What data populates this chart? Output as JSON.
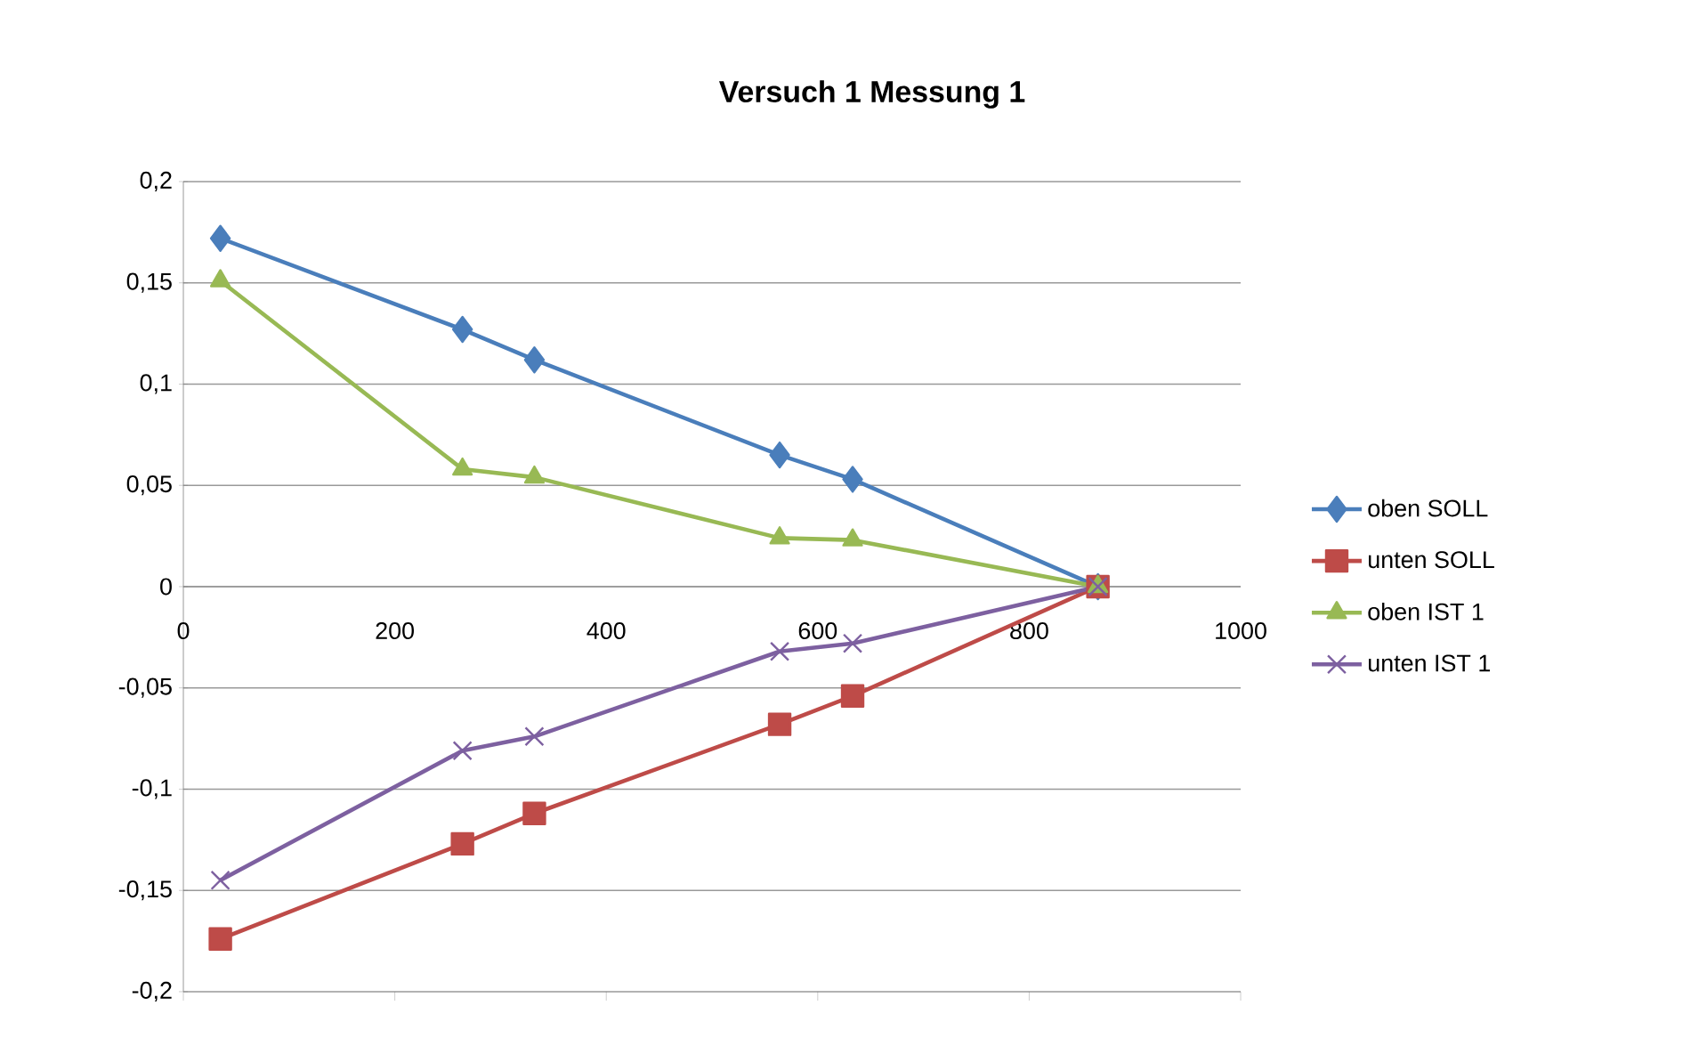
{
  "chart_data": {
    "type": "line",
    "title": "Versuch 1 Messung 1",
    "x": [
      35,
      264,
      332,
      564,
      633,
      865
    ],
    "series": [
      {
        "name": "oben SOLL",
        "color": "#4a7ebb",
        "marker": "diamond",
        "values": [
          0.172,
          0.127,
          0.112,
          0.065,
          0.053,
          0
        ]
      },
      {
        "name": "unten SOLL",
        "color": "#be4b48",
        "marker": "square",
        "values": [
          -0.174,
          -0.127,
          -0.112,
          -0.068,
          -0.054,
          0
        ]
      },
      {
        "name": "oben IST 1",
        "color": "#98b954",
        "marker": "triangle",
        "values": [
          0.151,
          0.058,
          0.054,
          0.024,
          0.023,
          0
        ]
      },
      {
        "name": "unten IST 1",
        "color": "#7d60a0",
        "marker": "cross",
        "values": [
          -0.145,
          -0.081,
          -0.074,
          -0.032,
          -0.028,
          0
        ]
      }
    ],
    "xlim": [
      0,
      1000
    ],
    "xticks": [
      0,
      200,
      400,
      600,
      800,
      1000
    ],
    "ylim": [
      -0.2,
      0.2
    ],
    "yticks": [
      {
        "value": -0.2,
        "label": "-0,2"
      },
      {
        "value": -0.15,
        "label": "-0,15"
      },
      {
        "value": -0.1,
        "label": "-0,1"
      },
      {
        "value": -0.05,
        "label": "-0,05"
      },
      {
        "value": 0,
        "label": "0"
      },
      {
        "value": 0.05,
        "label": "0,05"
      },
      {
        "value": 0.1,
        "label": "0,1"
      },
      {
        "value": 0.15,
        "label": "0,15"
      },
      {
        "value": 0.2,
        "label": "0,2"
      }
    ],
    "grid": "y",
    "legend": "right",
    "line_style": "solid"
  }
}
